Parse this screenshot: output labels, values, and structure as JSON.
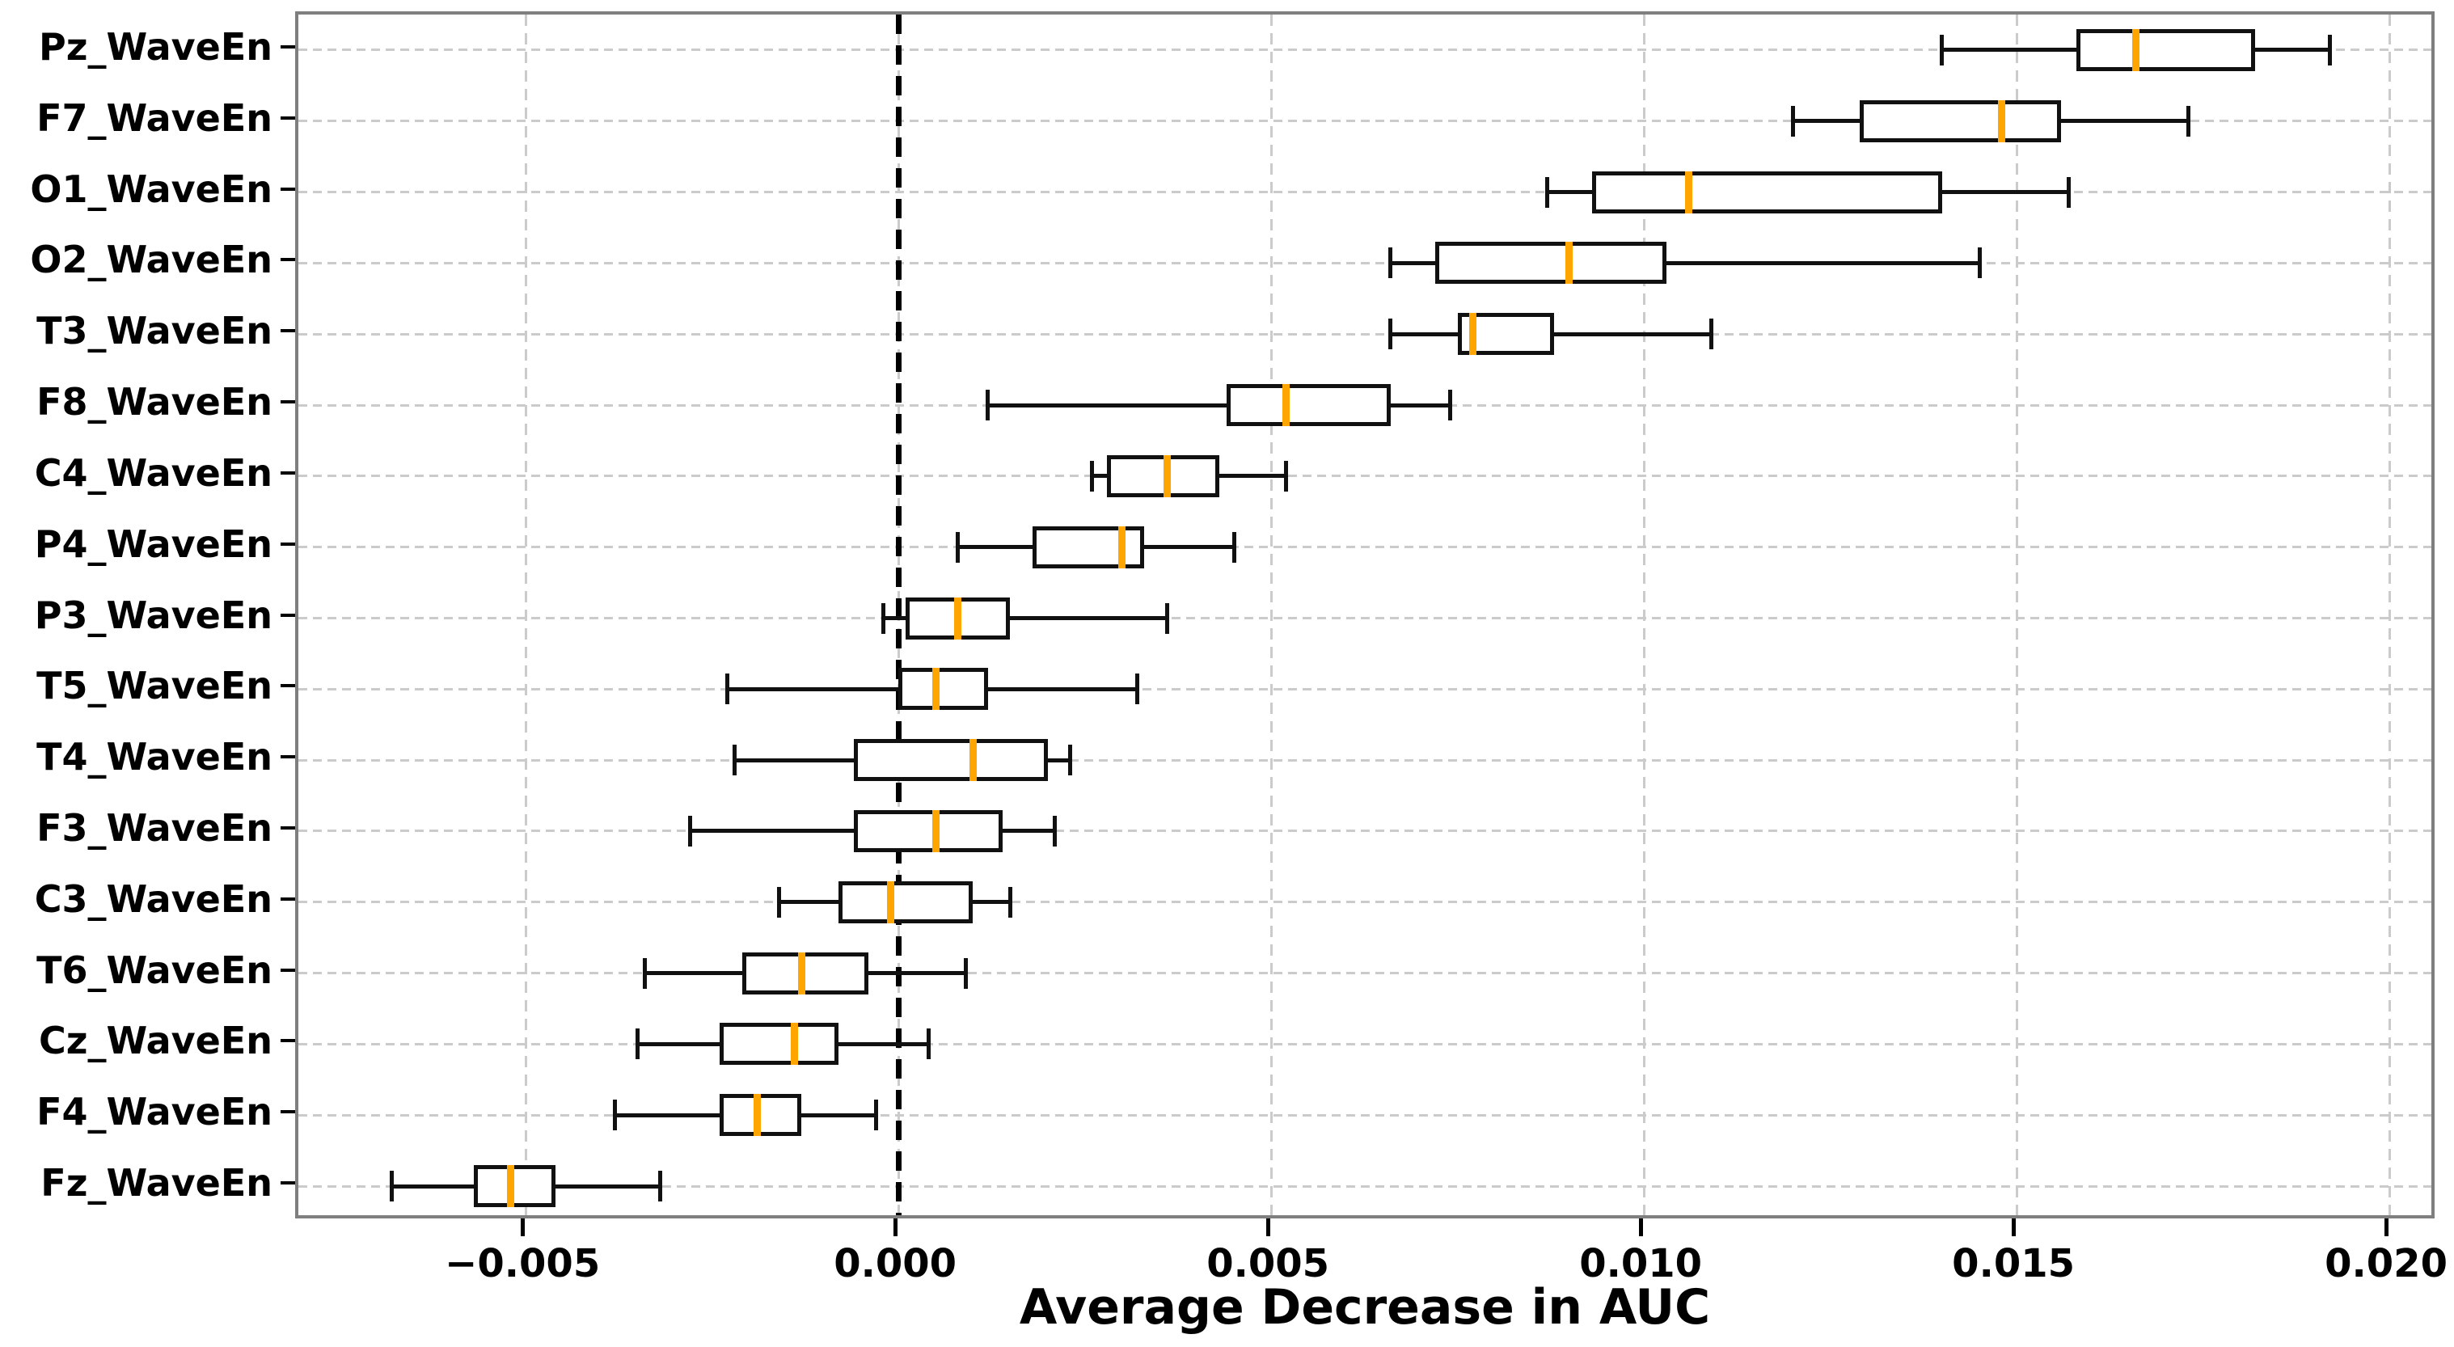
{
  "chart_data": {
    "type": "boxplot",
    "orientation": "horizontal",
    "title": "",
    "xlabel": "Average Decrease in AUC",
    "ylabel": "",
    "xlim": [
      -0.00805,
      0.02065
    ],
    "x_ticks": [
      -0.005,
      0.0,
      0.005,
      0.01,
      0.015,
      0.02
    ],
    "x_tick_labels": [
      "−0.005",
      "0.000",
      "0.005",
      "0.010",
      "0.015",
      "0.020"
    ],
    "grid": true,
    "zero_reference_line": 0.0,
    "legend": "none",
    "categories": [
      "Pz_WaveEn",
      "F7_WaveEn",
      "O1_WaveEn",
      "O2_WaveEn",
      "T3_WaveEn",
      "F8_WaveEn",
      "C4_WaveEn",
      "P4_WaveEn",
      "P3_WaveEn",
      "T5_WaveEn",
      "T4_WaveEn",
      "F3_WaveEn",
      "C3_WaveEn",
      "T6_WaveEn",
      "Cz_WaveEn",
      "F4_WaveEn",
      "Fz_WaveEn"
    ],
    "series": [
      {
        "name": "Pz_WaveEn",
        "whisker_low": 0.014,
        "q1": 0.0158,
        "median": 0.0166,
        "q3": 0.0182,
        "whisker_high": 0.0192
      },
      {
        "name": "F7_WaveEn",
        "whisker_low": 0.012,
        "q1": 0.0129,
        "median": 0.0148,
        "q3": 0.0156,
        "whisker_high": 0.0173
      },
      {
        "name": "O1_WaveEn",
        "whisker_low": 0.0087,
        "q1": 0.0093,
        "median": 0.0106,
        "q3": 0.014,
        "whisker_high": 0.0157
      },
      {
        "name": "O2_WaveEn",
        "whisker_low": 0.0066,
        "q1": 0.0072,
        "median": 0.009,
        "q3": 0.0103,
        "whisker_high": 0.0145
      },
      {
        "name": "T3_WaveEn",
        "whisker_low": 0.0066,
        "q1": 0.0075,
        "median": 0.0077,
        "q3": 0.0088,
        "whisker_high": 0.0109
      },
      {
        "name": "F8_WaveEn",
        "whisker_low": 0.0012,
        "q1": 0.0044,
        "median": 0.0052,
        "q3": 0.0066,
        "whisker_high": 0.0074
      },
      {
        "name": "C4_WaveEn",
        "whisker_low": 0.0026,
        "q1": 0.0028,
        "median": 0.0036,
        "q3": 0.0043,
        "whisker_high": 0.0052
      },
      {
        "name": "P4_WaveEn",
        "whisker_low": 0.0008,
        "q1": 0.0018,
        "median": 0.003,
        "q3": 0.0033,
        "whisker_high": 0.0045
      },
      {
        "name": "P3_WaveEn",
        "whisker_low": -0.0002,
        "q1": 0.0001,
        "median": 0.0008,
        "q3": 0.0015,
        "whisker_high": 0.0036
      },
      {
        "name": "T5_WaveEn",
        "whisker_low": -0.0023,
        "q1": 0.0,
        "median": 0.0005,
        "q3": 0.0012,
        "whisker_high": 0.0032
      },
      {
        "name": "T4_WaveEn",
        "whisker_low": -0.0022,
        "q1": -0.0006,
        "median": 0.001,
        "q3": 0.002,
        "whisker_high": 0.0023
      },
      {
        "name": "F3_WaveEn",
        "whisker_low": -0.0028,
        "q1": -0.0006,
        "median": 0.0005,
        "q3": 0.0014,
        "whisker_high": 0.0021
      },
      {
        "name": "C3_WaveEn",
        "whisker_low": -0.0016,
        "q1": -0.0008,
        "median": -0.0001,
        "q3": 0.001,
        "whisker_high": 0.0015
      },
      {
        "name": "T6_WaveEn",
        "whisker_low": -0.0034,
        "q1": -0.0021,
        "median": -0.0013,
        "q3": -0.0004,
        "whisker_high": 0.0009
      },
      {
        "name": "Cz_WaveEn",
        "whisker_low": -0.0035,
        "q1": -0.0024,
        "median": -0.0014,
        "q3": -0.0008,
        "whisker_high": 0.0004
      },
      {
        "name": "F4_WaveEn",
        "whisker_low": -0.0038,
        "q1": -0.0024,
        "median": -0.0019,
        "q3": -0.0013,
        "whisker_high": -0.0003
      },
      {
        "name": "Fz_WaveEn",
        "whisker_low": -0.0068,
        "q1": -0.0057,
        "median": -0.0052,
        "q3": -0.0046,
        "whisker_high": -0.0032
      }
    ],
    "colors": {
      "median": "#FFA500",
      "box_edge": "#111111",
      "box_fill": "#ffffff",
      "whisker": "#111111",
      "grid": "#cbcbcb",
      "spine": "#7f7f7f",
      "zero_line": "#000000"
    }
  }
}
